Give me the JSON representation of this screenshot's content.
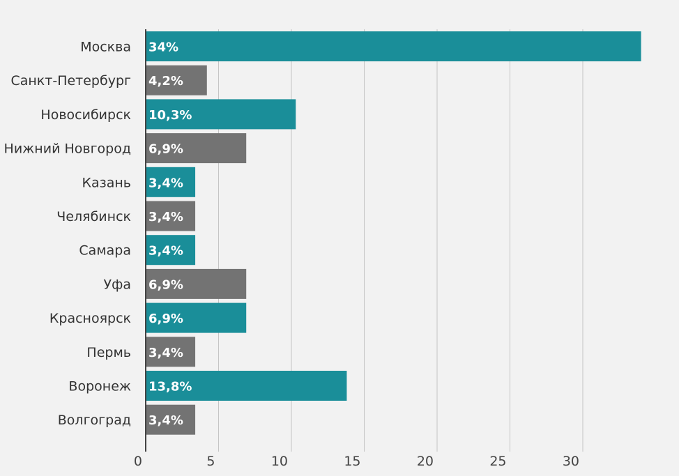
{
  "chart_data": {
    "type": "bar",
    "orientation": "horizontal",
    "categories": [
      "Москва",
      "Санкт-Петербург",
      "Новосибирск",
      "Нижний Новгород",
      "Казань",
      "Челябинск",
      "Самара",
      "Уфа",
      "Красноярск",
      "Пермь",
      "Воронеж",
      "Волгоград"
    ],
    "values": [
      34,
      4.2,
      10.3,
      6.9,
      3.4,
      3.4,
      3.4,
      6.9,
      6.9,
      3.4,
      13.8,
      3.4
    ],
    "value_labels": [
      "34%",
      "4,2%",
      "10,3%",
      "6,9%",
      "3,4%",
      "3,4%",
      "3,4%",
      "6,9%",
      "6,9%",
      "3,4%",
      "13,8%",
      "3,4%"
    ],
    "colors": [
      "#1a8e99",
      "#737373",
      "#1a8e99",
      "#737373",
      "#1a8e99",
      "#737373",
      "#1a8e99",
      "#737373",
      "#1a8e99",
      "#737373",
      "#1a8e99",
      "#737373"
    ],
    "x_ticks": [
      0,
      5,
      10,
      15,
      20,
      25,
      30
    ],
    "x_tick_labels": [
      "0",
      "5",
      "10",
      "15",
      "20",
      "25",
      "30"
    ],
    "xlim": [
      0,
      35
    ],
    "grid": true,
    "title": "",
    "xlabel": "",
    "ylabel": ""
  }
}
